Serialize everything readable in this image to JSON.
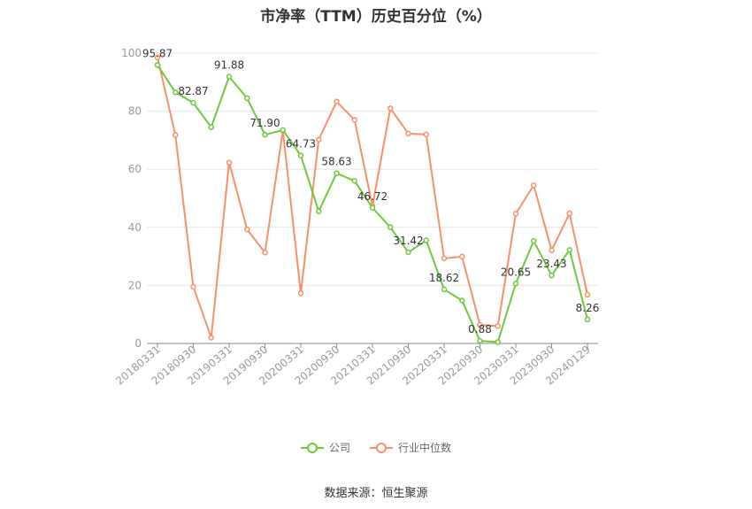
{
  "chart_data": {
    "type": "line",
    "title": "市净率（TTM）历史百分位（%）",
    "source": "数据来源：恒生聚源",
    "ylim": [
      0,
      100
    ],
    "yticks": [
      "0",
      "20",
      "40",
      "60",
      "80",
      "100"
    ],
    "x_tick_labels": [
      "20180331",
      "20180930",
      "20190331",
      "20190930",
      "20200331",
      "20200930",
      "20210331",
      "20210930",
      "20220331",
      "20220930",
      "20230331",
      "20230930",
      "20240129"
    ],
    "categories": [
      "20180331",
      "20180630",
      "20180930",
      "20181231",
      "20190331",
      "20190630",
      "20190930",
      "20191231",
      "20200331",
      "20200630",
      "20200930",
      "20201231",
      "20210331",
      "20210630",
      "20210930",
      "20211231",
      "20220331",
      "20220630",
      "20220930",
      "20221231",
      "20230331",
      "20230630",
      "20230930",
      "20231231",
      "20240129"
    ],
    "series": [
      {
        "name": "公司",
        "color": "#6dc93b",
        "values": [
          95.87,
          86.5,
          82.87,
          74.5,
          91.88,
          84.5,
          71.9,
          73.5,
          64.73,
          45.5,
          58.63,
          56.0,
          46.72,
          40.0,
          31.42,
          35.5,
          18.62,
          14.8,
          0.88,
          0.5,
          20.65,
          35.3,
          23.43,
          32.2,
          8.26
        ],
        "labels": [
          "95.87",
          "",
          "82.87",
          "",
          "91.88",
          "",
          "71.90",
          "",
          "64.73",
          "",
          "58.63",
          "",
          "46.72",
          "",
          "31.42",
          "",
          "18.62",
          "",
          "0.88",
          "",
          "20.65",
          "",
          "23.43",
          "",
          "8.26"
        ]
      },
      {
        "name": "行业中位数",
        "color": "#f5916a",
        "values": [
          98.5,
          71.8,
          19.5,
          2.0,
          62.3,
          39.3,
          31.3,
          73.3,
          17.3,
          70.2,
          83.3,
          77.0,
          47.3,
          81.0,
          72.3,
          72.0,
          29.3,
          29.9,
          6.4,
          6.0,
          44.7,
          54.5,
          32.1,
          44.8,
          16.8
        ]
      }
    ],
    "legend_position": "bottom"
  }
}
